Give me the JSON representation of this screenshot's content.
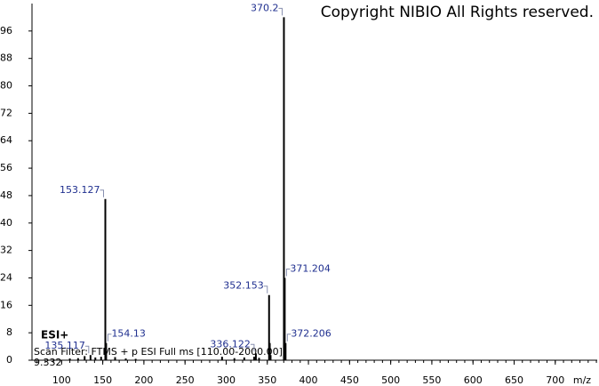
{
  "chart_data": {
    "type": "bar",
    "title": "Copyright NIBIO All Rights reserved.",
    "x_label": "m/z",
    "ionization": "ESI+",
    "scan_filter": "Scan Filter: FTMS + p ESI Full ms [110.00-2000.00]",
    "retention_time": "9.332",
    "x": [
      135.117,
      153.127,
      154.13,
      336.122,
      352.153,
      370.2,
      371.204,
      372.206
    ],
    "values": [
      1.5,
      47,
      5,
      2,
      19,
      100,
      24,
      5
    ],
    "minor_peaks": {
      "x": [
        110,
        120,
        128,
        141,
        148,
        165,
        178,
        190,
        295,
        310,
        322,
        334,
        340,
        353,
        354
      ],
      "values": [
        0.5,
        0.6,
        1.2,
        0.8,
        1,
        0.9,
        0.5,
        0.4,
        1,
        0.6,
        0.8,
        1,
        0.7,
        5,
        1.5
      ]
    },
    "color": "#000000",
    "label_color": "#1f2f8f",
    "xlim": [
      64,
      751
    ],
    "ylim": [
      0,
      104
    ],
    "xticks": [
      100,
      150,
      200,
      250,
      300,
      350,
      400,
      450,
      500,
      550,
      600,
      650,
      700
    ],
    "yticks": [
      0,
      8,
      16,
      24,
      32,
      40,
      48,
      56,
      64,
      72,
      80,
      88,
      96
    ]
  }
}
